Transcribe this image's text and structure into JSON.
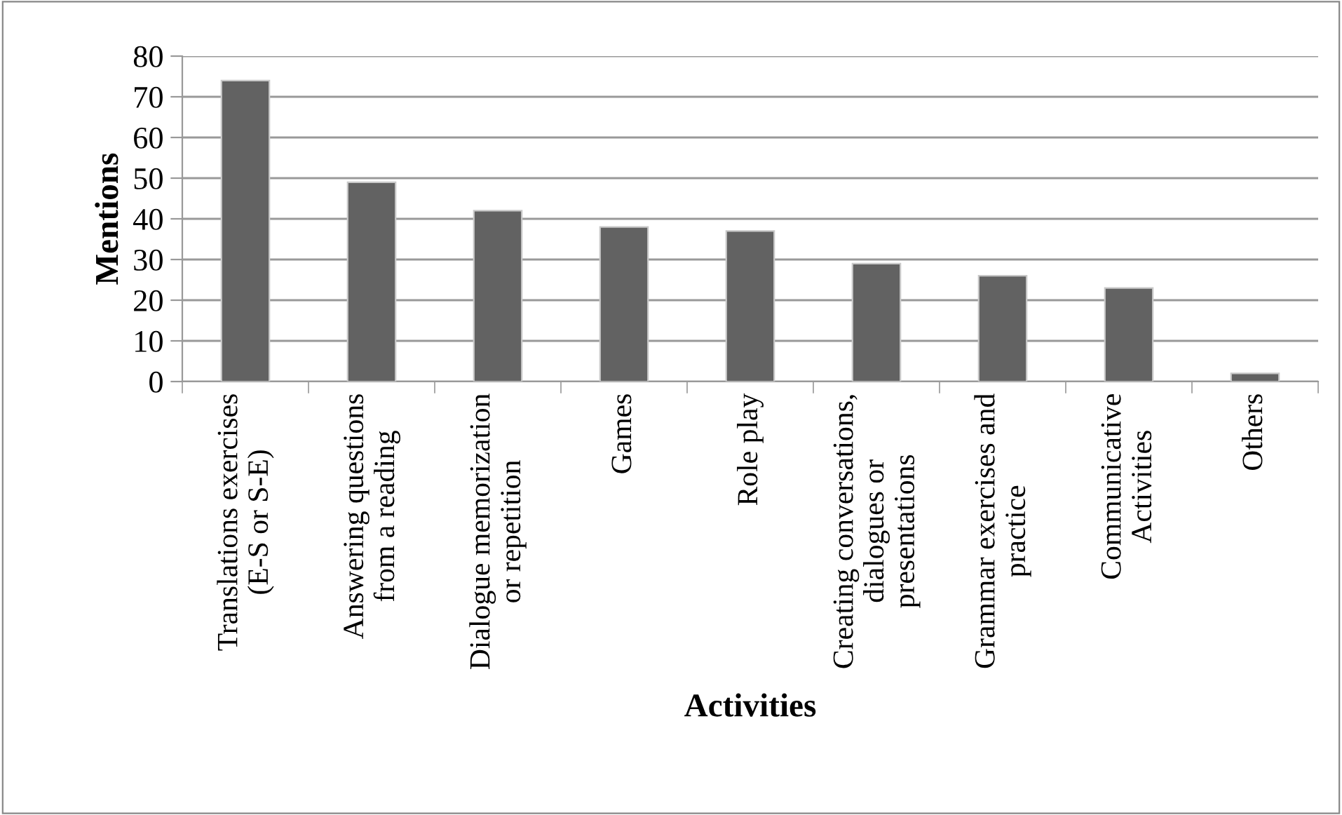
{
  "chart_data": {
    "type": "bar",
    "xlabel": "Activities",
    "ylabel": "Mentions",
    "categories": [
      "Translations exercises\n(E-S or S-E)",
      "Answering questions\nfrom a reading",
      "Dialogue memorization\nor repetition",
      "Games",
      "Role play",
      "Creating conversations,\ndialogues or\npresentations",
      "Grammar exercises and\npractice",
      "Communicative\nActivities",
      "Others"
    ],
    "values": [
      74,
      49,
      42,
      38,
      37,
      29,
      26,
      23,
      2
    ],
    "color": "#626262",
    "ylim": [
      0,
      80
    ],
    "yticks": [
      0,
      10,
      20,
      30,
      40,
      50,
      60,
      70,
      80
    ],
    "grid": "y",
    "legend": false
  }
}
